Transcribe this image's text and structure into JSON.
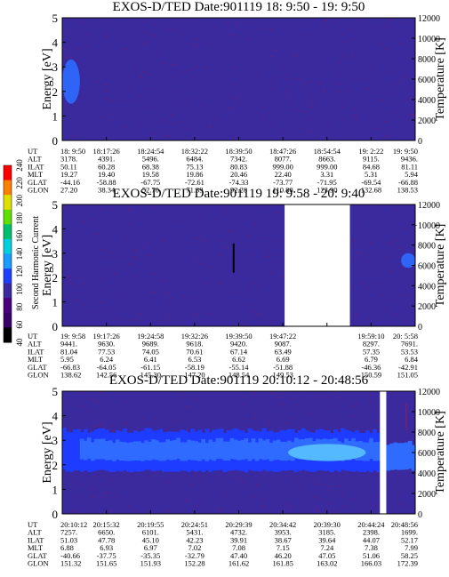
{
  "colors": {
    "background": "#3a2a9e",
    "speckle": "#7a1f6a",
    "band_outer": "#1e3cff",
    "band_mid": "#2f6bff",
    "band_inner": "#59c2ff",
    "gap": "#ffffff",
    "frame": "#000000"
  },
  "colorbar": {
    "label": "Second Harmonic Current",
    "ticks": [
      "40",
      "60",
      "80",
      "100",
      "120",
      "140",
      "160",
      "180",
      "200",
      "220",
      "240"
    ],
    "stops": [
      "#000000",
      "#3a006a",
      "#4b007f",
      "#3a2a9e",
      "#2040ff",
      "#1a9bff",
      "#00d0e0",
      "#00c070",
      "#60e000",
      "#e0e000",
      "#ff8000",
      "#ff0000"
    ]
  },
  "chart_data": [
    {
      "type": "heatmap",
      "title": "EXOS-D/TED   Date:901119  18: 9:50 - 19: 9:50",
      "ylabel": "Energy [eV]",
      "y2label": "Temperature [K]",
      "ylim": [
        0,
        5
      ],
      "y2lim": [
        0,
        12000
      ],
      "yticks": [
        "0",
        "1",
        "2",
        "3",
        "4",
        "5"
      ],
      "y2ticks": [
        "0",
        "2000",
        "4000",
        "6000",
        "8000",
        "10000",
        "12000"
      ],
      "gaps": [],
      "features": [
        {
          "kind": "blob",
          "x": [
            0.0,
            0.05
          ],
          "y": [
            1.5,
            3.3
          ],
          "color": "band_mid"
        }
      ],
      "table": {
        "row_labels": [
          "UT",
          "ALT",
          "ILAT",
          "MLT",
          "GLAT",
          "GLON"
        ],
        "columns": [
          [
            "18: 9:50",
            "3178.",
            "50.11",
            "19.27",
            "-44.16",
            "27.20"
          ],
          [
            "18:17:26",
            "4391.",
            "60.28",
            "19.40",
            "-58.88",
            "38.34"
          ],
          [
            "18:24:54",
            "5496.",
            "68.38",
            "19.58",
            "-67.75",
            "52.70"
          ],
          [
            "18:32:22",
            "6484.",
            "75.13",
            "19.86",
            "-72.61",
            "71.39"
          ],
          [
            "18:39:50",
            "7342.",
            "80.83",
            "20.46",
            "-74.33",
            "92.28"
          ],
          [
            "18:47:26",
            "8077.",
            "999.00",
            "22.40",
            "-73.77",
            "110.80"
          ],
          [
            "18:54:54",
            "8663.",
            "999.00",
            "3.31",
            "-71.95",
            "123.90"
          ],
          [
            "19: 2:22",
            "9115.",
            "84.68",
            "5.31",
            "-69.54",
            "132.68"
          ],
          [
            "19: 9:50",
            "9436.",
            "81.11",
            "5.94",
            "-66.88",
            "138.53"
          ]
        ]
      }
    },
    {
      "type": "heatmap",
      "title": "EXOS-D/TED   Date:901119  19: 9:58 - 20: 9:40",
      "ylabel": "Energy [eV]",
      "y2label": "Temperature [K]",
      "ylim": [
        0,
        5
      ],
      "y2lim": [
        0,
        12000
      ],
      "yticks": [
        "0",
        "1",
        "2",
        "3",
        "4",
        "5"
      ],
      "y2ticks": [
        "0",
        "2000",
        "4000",
        "6000",
        "8000",
        "10000",
        "12000"
      ],
      "gaps": [
        [
          0.63,
          0.815
        ]
      ],
      "features": [
        {
          "kind": "line",
          "x": [
            0.483,
            0.488
          ],
          "y": [
            2.2,
            3.4
          ],
          "color": "frame"
        },
        {
          "kind": "blob",
          "x": [
            0.96,
            1.0
          ],
          "y": [
            2.4,
            3.0
          ],
          "color": "band_mid"
        }
      ],
      "table": {
        "row_labels": [
          "UT",
          "ALT",
          "ILAT",
          "MLT",
          "GLAT",
          "GLON"
        ],
        "columns": [
          [
            "19: 9:58",
            "9441.",
            "81.04",
            "5.95",
            "-66.83",
            "138.62"
          ],
          [
            "19:17:26",
            "9630.",
            "77.53",
            "6.24",
            "-64.05",
            "142.56"
          ],
          [
            "19:24:58",
            "9689.",
            "74.05",
            "6.41",
            "-61.15",
            "145.30"
          ],
          [
            "19:32:26",
            "9618.",
            "70.61",
            "6.53",
            "-58.19",
            "147.20"
          ],
          [
            "19:39:50",
            "9420.",
            "67.14",
            "6.62",
            "-55.14",
            "148.54"
          ],
          [
            "19:47:22",
            "9087.",
            "63.49",
            "6.69",
            "-51.88",
            "149.53"
          ],
          [
            "",
            "",
            "",
            "",
            "",
            ""
          ],
          [
            "19:59:10",
            "8297.",
            "57.35",
            "6.79",
            "-46.36",
            "150.59"
          ],
          [
            "20: 5:58",
            "7691.",
            "53.53",
            "6.84",
            "-42.91",
            "151.05"
          ]
        ]
      }
    },
    {
      "type": "heatmap",
      "title": "EXOS-D/TED   Date:901119  20:10:12 - 20:48:56",
      "ylabel": "Energy [eV]",
      "y2label": "Temperature [K]",
      "ylim": [
        0,
        5
      ],
      "y2lim": [
        0,
        12000
      ],
      "yticks": [
        "0",
        "1",
        "2",
        "3",
        "4",
        "5"
      ],
      "y2ticks": [
        "0",
        "2000",
        "4000",
        "6000",
        "8000",
        "10000",
        "12000"
      ],
      "gaps": [
        [
          0.9,
          0.918
        ]
      ],
      "features": [
        {
          "kind": "band",
          "x": [
            0.0,
            0.9
          ],
          "y": [
            1.75,
            3.4
          ],
          "color": "band_outer"
        },
        {
          "kind": "band",
          "x": [
            0.05,
            0.9
          ],
          "y": [
            2.2,
            3.0
          ],
          "color": "band_mid"
        },
        {
          "kind": "blob",
          "x": [
            0.64,
            0.86
          ],
          "y": [
            2.15,
            2.85
          ],
          "color": "band_inner"
        },
        {
          "kind": "band",
          "x": [
            0.918,
            1.0
          ],
          "y": [
            1.8,
            2.9
          ],
          "color": "band_mid"
        },
        {
          "kind": "line",
          "x": [
            0.972,
            0.976
          ],
          "y": [
            3.4,
            4.5
          ],
          "color": "speckle"
        }
      ],
      "table": {
        "row_labels": [
          "UT",
          "ALT",
          "ILAT",
          "MLT",
          "GLAT",
          "GLON"
        ],
        "columns": [
          [
            "20:10:12",
            "7257.",
            "51.03",
            "6.88",
            "-40.66",
            "151.32"
          ],
          [
            "20:15:32",
            "6650.",
            "47.78",
            "6.93",
            "-37.75",
            "151.65"
          ],
          [
            "20:19:55",
            "6101.",
            "45.10",
            "6.97",
            "-35.35",
            "151.93"
          ],
          [
            "20:24:51",
            "5431.",
            "42.23",
            "7.02",
            "-32.79",
            "152.28"
          ],
          [
            "20:29:39",
            "4732.",
            "39.91",
            "7.08",
            "47.40",
            "161.62"
          ],
          [
            "20:34:42",
            "3953.",
            "38.67",
            "7.15",
            "46.20",
            "161.85"
          ],
          [
            "20:39:30",
            "3185.",
            "39.64",
            "7.24",
            "47.05",
            "163.02"
          ],
          [
            "20:44:24",
            "2398.",
            "44.07",
            "7.38",
            "51.06",
            "166.03"
          ],
          [
            "20:48:56",
            "1699.",
            "52.17",
            "7.99",
            "58.25",
            "172.39"
          ]
        ]
      }
    }
  ]
}
